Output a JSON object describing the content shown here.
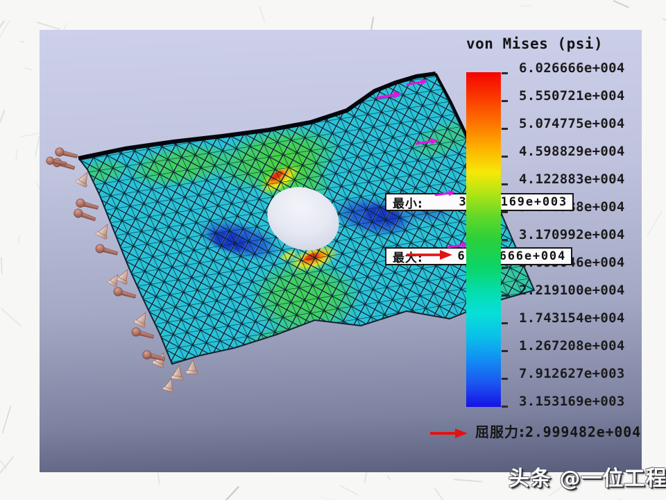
{
  "slide": {
    "legend": {
      "title": "von Mises (psi)",
      "values": [
        "6.026666e+004",
        "5.550721e+004",
        "5.074775e+004",
        "4.598829e+004",
        "4.122883e+004",
        "3.646938e+004",
        "3.170992e+004",
        "2.695046e+004",
        "2.219100e+004",
        "1.743154e+004",
        "1.267208e+004",
        "7.912627e+003",
        "3.153169e+003"
      ]
    },
    "callouts": {
      "min": {
        "label": "最小:",
        "value": "3.153169e+003"
      },
      "max": {
        "label": "最大:",
        "value": "6.026666e+004"
      }
    },
    "yield": {
      "label": "屈服力:",
      "value": "2.999482e+004"
    }
  },
  "watermark": {
    "text": "头条 @一位工程师"
  },
  "colors": {
    "colorbar_top": "#f60300",
    "colorbar_bottom": "#1512e6",
    "plate_base": "#28c2d8",
    "mesh_line": "#0b2231",
    "load_arrow": "#e214e2",
    "fixture": "#b5786c",
    "annotation_arrow": "#e11414"
  }
}
